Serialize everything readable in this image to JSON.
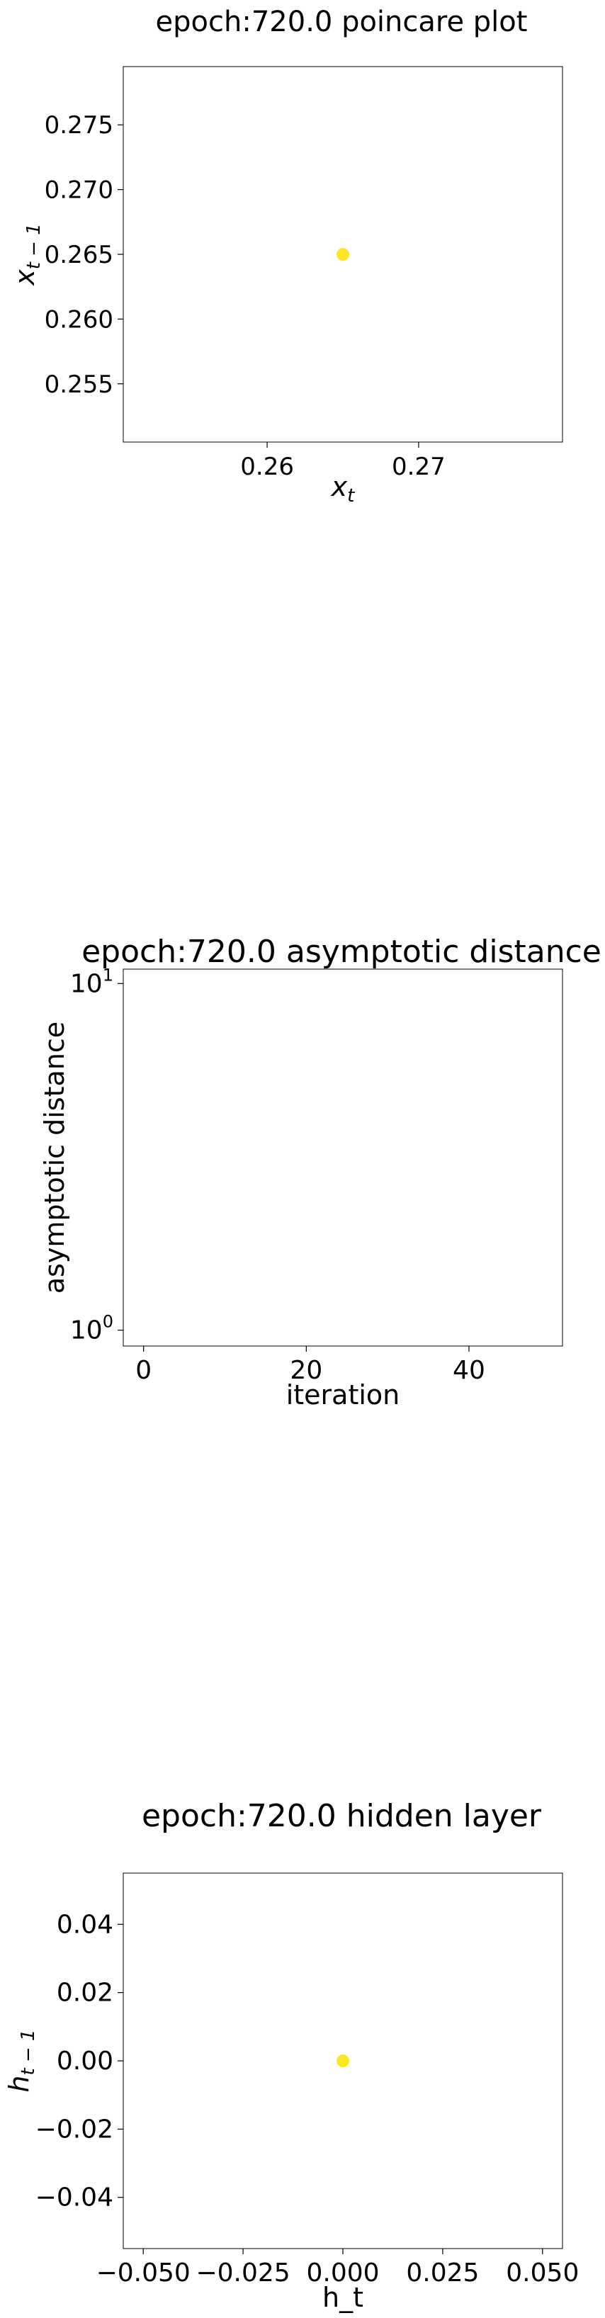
{
  "chart_data": [
    {
      "type": "scatter",
      "title": "epoch:720.0 poincare plot",
      "xlabel": "x_t",
      "ylabel": "x_{t-1}",
      "xlim": [
        0.2505,
        0.2795
      ],
      "ylim": [
        0.2505,
        0.2795
      ],
      "x_ticks": [
        0.26,
        0.27
      ],
      "x_tick_labels": [
        "0.26",
        "0.27"
      ],
      "y_ticks": [
        0.255,
        0.26,
        0.265,
        0.27,
        0.275
      ],
      "y_tick_labels": [
        "0.255",
        "0.260",
        "0.265",
        "0.270",
        "0.275"
      ],
      "points": [
        {
          "x": 0.265,
          "y": 0.265
        }
      ],
      "point_color": "#fde725",
      "grid": false
    },
    {
      "type": "line",
      "title": "epoch:720.0 asymptotic distance",
      "xlabel": "iteration",
      "ylabel": "asymptotic distance",
      "xlim": [
        -2.5,
        51.5
      ],
      "y_scale": "log",
      "ylim": [
        0.9,
        11.0
      ],
      "x_ticks": [
        0,
        20,
        40
      ],
      "x_tick_labels": [
        "0",
        "20",
        "40"
      ],
      "y_ticks": [
        1,
        10
      ],
      "y_tick_labels": [
        {
          "base": "10",
          "exp": "0"
        },
        {
          "base": "10",
          "exp": "1"
        }
      ],
      "points": [],
      "grid": false
    },
    {
      "type": "scatter",
      "title": "epoch:720.0 hidden layer",
      "xlabel": "h_t",
      "ylabel": "h_{t-1}",
      "xlim": [
        -0.055,
        0.055
      ],
      "ylim": [
        -0.055,
        0.055
      ],
      "x_ticks": [
        -0.05,
        -0.025,
        0.0,
        0.025,
        0.05
      ],
      "x_tick_labels": [
        "−0.050",
        "−0.025",
        "0.000",
        "0.025",
        "0.050"
      ],
      "y_ticks": [
        -0.04,
        -0.02,
        0.0,
        0.02,
        0.04
      ],
      "y_tick_labels": [
        "−0.04",
        "−0.02",
        "0.00",
        "0.02",
        "0.04"
      ],
      "points": [
        {
          "x": 0.0,
          "y": 0.0
        }
      ],
      "point_color": "#fde725",
      "grid": false
    }
  ]
}
